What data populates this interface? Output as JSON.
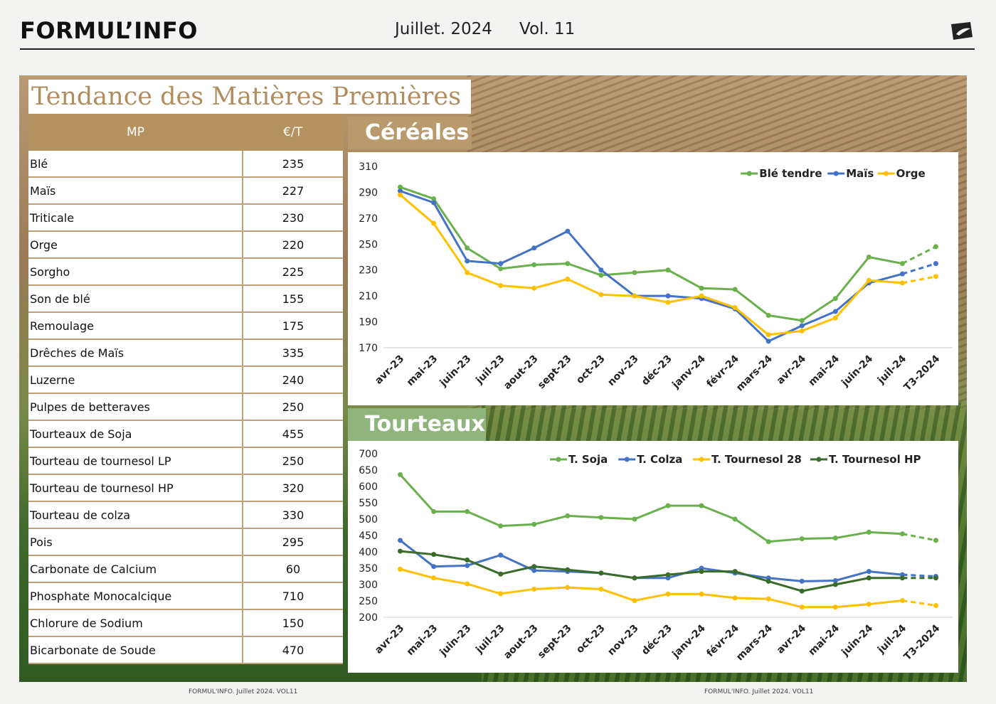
{
  "header": {
    "brand": "FORMUL’INFO",
    "date": "Juillet. 2024",
    "volume": "Vol. 11"
  },
  "page_title": "Tendance des Matières Premières",
  "table": {
    "col_mp": "MP",
    "col_price": "€/T",
    "rows": [
      {
        "name": "Blé",
        "price": "235"
      },
      {
        "name": "Maïs",
        "price": "227"
      },
      {
        "name": "Triticale",
        "price": "230"
      },
      {
        "name": "Orge",
        "price": "220"
      },
      {
        "name": "Sorgho",
        "price": "225"
      },
      {
        "name": "Son de blé",
        "price": "155"
      },
      {
        "name": "Remoulage",
        "price": "175"
      },
      {
        "name": "Drêches de Maïs",
        "price": "335"
      },
      {
        "name": "Luzerne",
        "price": "240"
      },
      {
        "name": "Pulpes de betteraves",
        "price": "250"
      },
      {
        "name": "Tourteaux de Soja",
        "price": "455"
      },
      {
        "name": "Tourteau de tournesol LP",
        "price": "250"
      },
      {
        "name": "Tourteau de tournesol HP",
        "price": "320"
      },
      {
        "name": "Tourteau de colza",
        "price": "330"
      },
      {
        "name": "Pois",
        "price": "295"
      },
      {
        "name": "Carbonate de Calcium",
        "price": "60"
      },
      {
        "name": "Phosphate Monocalcique",
        "price": "710"
      },
      {
        "name": "Chlorure de Sodium",
        "price": "150"
      },
      {
        "name": "Bicarbonate de Soude",
        "price": "470"
      }
    ]
  },
  "sections": {
    "cereales": "Céréales",
    "tourteaux": "Tourteaux"
  },
  "footer": {
    "left": "FORMUL'INFO. Juillet 2024. VOL11",
    "right": "FORMUL'INFO. Juillet 2024. VOL11"
  },
  "chart_data": [
    {
      "type": "line",
      "categories": [
        "avr-23",
        "mai-23",
        "juin-23",
        "juil-23",
        "aout-23",
        "sept-23",
        "oct-23",
        "nov-23",
        "déc-23",
        "janv-24",
        "févr-24",
        "mars-24",
        "avr-24",
        "mai-24",
        "juin-24",
        "juil-24",
        "T3-2024"
      ],
      "ylim": [
        170,
        310
      ],
      "yticks": [
        170,
        190,
        210,
        230,
        250,
        270,
        290,
        310
      ],
      "legend": "top-right",
      "dashed_last_segment": true,
      "series": [
        {
          "name": "Blé tendre",
          "color": "#6ab04c",
          "values": [
            294,
            285,
            247,
            231,
            234,
            235,
            226,
            228,
            230,
            216,
            215,
            195,
            191,
            208,
            240,
            235,
            248
          ]
        },
        {
          "name": "Maïs",
          "color": "#4472c4",
          "values": [
            291,
            282,
            237,
            235,
            247,
            260,
            230,
            210,
            210,
            208,
            200,
            175,
            187,
            198,
            220,
            227,
            235
          ]
        },
        {
          "name": "Orge",
          "color": "#ffc000",
          "values": [
            288,
            266,
            228,
            218,
            216,
            223,
            211,
            210,
            205,
            210,
            201,
            180,
            183,
            193,
            222,
            220,
            225
          ]
        }
      ]
    },
    {
      "type": "line",
      "categories": [
        "avr-23",
        "mai-23",
        "juin-23",
        "juil-23",
        "aout-23",
        "sept-23",
        "oct-23",
        "nov-23",
        "déc-23",
        "janv-24",
        "févr-24",
        "mars-24",
        "avr-24",
        "mai-24",
        "juin-24",
        "juil-24",
        "T3-2024"
      ],
      "ylim": [
        200,
        700
      ],
      "yticks": [
        200,
        250,
        300,
        350,
        400,
        450,
        500,
        550,
        600,
        650,
        700
      ],
      "legend": "top-right",
      "dashed_last_segment": true,
      "series": [
        {
          "name": "T. Soja",
          "color": "#6ab04c",
          "values": [
            636,
            523,
            523,
            479,
            484,
            510,
            505,
            500,
            541,
            541,
            500,
            431,
            440,
            442,
            460,
            455,
            435
          ]
        },
        {
          "name": "T. Colza",
          "color": "#4472c4",
          "values": [
            435,
            355,
            358,
            390,
            343,
            340,
            335,
            320,
            320,
            350,
            335,
            320,
            310,
            312,
            340,
            330,
            325
          ]
        },
        {
          "name": "T. Tournesol 28",
          "color": "#ffc000",
          "values": [
            347,
            320,
            302,
            272,
            286,
            291,
            286,
            251,
            271,
            271,
            259,
            256,
            231,
            231,
            240,
            251,
            236
          ]
        },
        {
          "name": "T. Tournesol HP",
          "color": "#3a6b2a",
          "values": [
            402,
            392,
            375,
            332,
            355,
            345,
            335,
            320,
            330,
            340,
            340,
            310,
            280,
            300,
            320,
            320,
            320
          ]
        }
      ]
    }
  ]
}
